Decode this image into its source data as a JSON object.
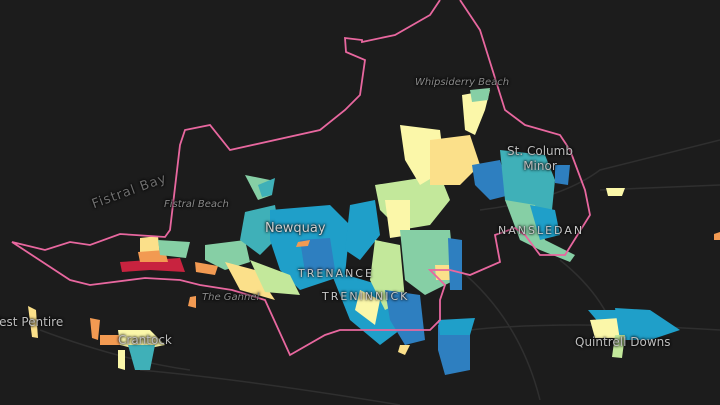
{
  "map": {
    "basemap": "dark",
    "boundary_color": "#e8679f",
    "palette": [
      "#c8233f",
      "#f29a52",
      "#fbe08a",
      "#fbf7a9",
      "#c3e89b",
      "#86cfa5",
      "#3fb0b8",
      "#1f9fc9",
      "#2e7fc0"
    ],
    "labels": {
      "fistral_bay": "Fistral Bay",
      "fistral_beach": "Fistral Beach",
      "whipsiderry_beach": "Whipsiderry Beach",
      "newquay": "Newquay",
      "st_columb_minor": "St. Columb Minor",
      "nansledan": "NANSLEDAN",
      "trenance": "TRENANCE",
      "treninnick": "TRENINNICK",
      "the_gannel": "The Gannel",
      "west_pentire": "West Pentire",
      "crantock": "Crantock",
      "quintrell_downs": "Quintrell Downs"
    }
  }
}
